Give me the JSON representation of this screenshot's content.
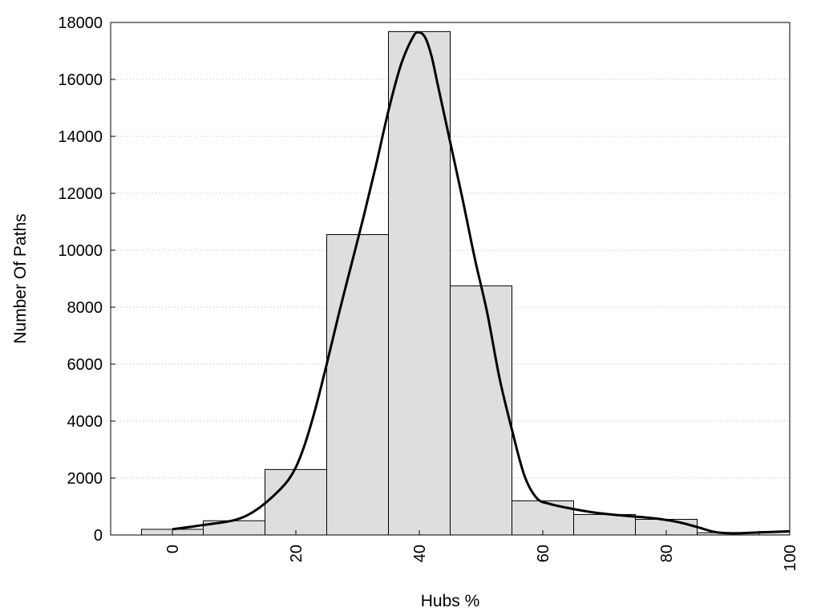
{
  "chart_data": {
    "type": "bar",
    "title": "",
    "xlabel": "Hubs %",
    "ylabel": "Number Of Paths",
    "xlim": [
      -10,
      100
    ],
    "ylim": [
      0,
      18000
    ],
    "xticks": [
      0,
      20,
      40,
      60,
      80,
      100
    ],
    "yticks": [
      0,
      2000,
      4000,
      6000,
      8000,
      10000,
      12000,
      14000,
      16000,
      18000
    ],
    "grid": "horizontal-dotted",
    "bar_width": 10,
    "bars": [
      {
        "x": 0,
        "value": 200
      },
      {
        "x": 10,
        "value": 500
      },
      {
        "x": 20,
        "value": 2300
      },
      {
        "x": 30,
        "value": 10550
      },
      {
        "x": 40,
        "value": 17680
      },
      {
        "x": 50,
        "value": 8750
      },
      {
        "x": 60,
        "value": 1200
      },
      {
        "x": 70,
        "value": 720
      },
      {
        "x": 80,
        "value": 550
      },
      {
        "x": 90,
        "value": 80
      },
      {
        "x": 100,
        "value": 120
      }
    ],
    "curve": [
      {
        "x": 0,
        "y": 200
      },
      {
        "x": 5,
        "y": 350
      },
      {
        "x": 10,
        "y": 520
      },
      {
        "x": 13,
        "y": 800
      },
      {
        "x": 16,
        "y": 1300
      },
      {
        "x": 19,
        "y": 2000
      },
      {
        "x": 21,
        "y": 2900
      },
      {
        "x": 23,
        "y": 4300
      },
      {
        "x": 25,
        "y": 6000
      },
      {
        "x": 27,
        "y": 7800
      },
      {
        "x": 29,
        "y": 9500
      },
      {
        "x": 31,
        "y": 11200
      },
      {
        "x": 33,
        "y": 13000
      },
      {
        "x": 35,
        "y": 14900
      },
      {
        "x": 37,
        "y": 16500
      },
      {
        "x": 39,
        "y": 17500
      },
      {
        "x": 40,
        "y": 17650
      },
      {
        "x": 41,
        "y": 17450
      },
      {
        "x": 42,
        "y": 16800
      },
      {
        "x": 43,
        "y": 15800
      },
      {
        "x": 45,
        "y": 13800
      },
      {
        "x": 47,
        "y": 11800
      },
      {
        "x": 49,
        "y": 9700
      },
      {
        "x": 51,
        "y": 7800
      },
      {
        "x": 53,
        "y": 5500
      },
      {
        "x": 55,
        "y": 3700
      },
      {
        "x": 57,
        "y": 2100
      },
      {
        "x": 59,
        "y": 1300
      },
      {
        "x": 61,
        "y": 1100
      },
      {
        "x": 64,
        "y": 950
      },
      {
        "x": 68,
        "y": 800
      },
      {
        "x": 72,
        "y": 700
      },
      {
        "x": 76,
        "y": 630
      },
      {
        "x": 79,
        "y": 560
      },
      {
        "x": 82,
        "y": 450
      },
      {
        "x": 85,
        "y": 280
      },
      {
        "x": 88,
        "y": 100
      },
      {
        "x": 91,
        "y": 60
      },
      {
        "x": 95,
        "y": 90
      },
      {
        "x": 100,
        "y": 130
      }
    ],
    "colors": {
      "bar_fill": "#dedede",
      "bar_stroke": "#000000",
      "curve": "#000000",
      "grid": "#bbbbbb"
    }
  }
}
